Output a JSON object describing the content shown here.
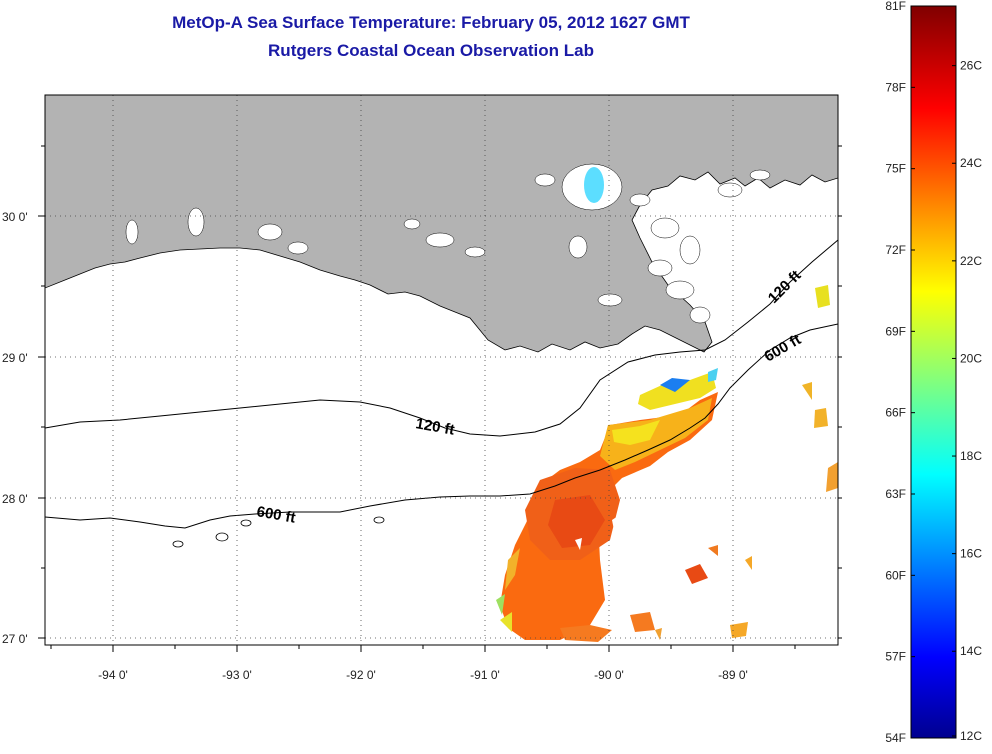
{
  "header": {
    "title": "MetOp-A Sea Surface Temperature:  February 05, 2012 1627 GMT",
    "subtitle": "Rutgers Coastal Ocean Observation Lab"
  },
  "map": {
    "x_ticks": [
      "-94 0'",
      "-93 0'",
      "-92 0'",
      "-91 0'",
      "-90 0'",
      "-89 0'"
    ],
    "y_ticks": [
      "30 0'",
      "29 0'",
      "28 0'",
      "27 0'"
    ],
    "contours": {
      "shelf_label": "120 ft",
      "slope_label": "600 ft"
    },
    "colors": {
      "land": "#b3b3b3",
      "frame": "#000000",
      "grid": "#555555"
    }
  },
  "colorbar": {
    "fahrenheit_ticks": [
      "81F",
      "78F",
      "75F",
      "72F",
      "69F",
      "66F",
      "63F",
      "60F",
      "57F",
      "54F"
    ],
    "celsius_ticks": [
      "26C",
      "24C",
      "22C",
      "20C",
      "18C",
      "16C",
      "14C",
      "12C"
    ],
    "colormap": [
      "#00008f",
      "#0000ff",
      "#00ffff",
      "#ffff00",
      "#ff0000",
      "#800000"
    ]
  }
}
